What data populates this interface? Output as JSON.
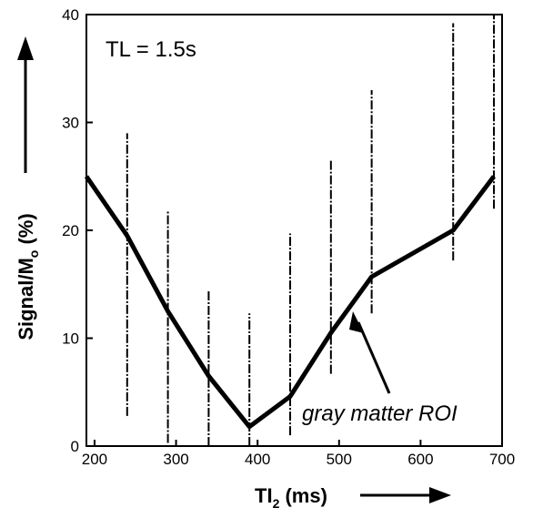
{
  "chart_data": {
    "type": "line",
    "inset_label": "TL = 1.5s",
    "xlabel_main": "TI",
    "xlabel_sub": "2",
    "xlabel_unit": " (ms)",
    "ylabel_main": "Signal/M",
    "ylabel_sub": "o",
    "ylabel_unit": " (%)",
    "annotation": "gray matter ROI",
    "xlim": [
      190,
      700
    ],
    "ylim": [
      0,
      40
    ],
    "xticks": [
      200,
      300,
      400,
      500,
      600,
      700
    ],
    "yticks": [
      0,
      10,
      20,
      30,
      40
    ],
    "series": [
      {
        "x": [
          190,
          240,
          290,
          340,
          390,
          440,
          490,
          540,
          640,
          690
        ],
        "y": [
          25,
          19.5,
          12.5,
          6.5,
          1.8,
          4.6,
          10.5,
          15.7,
          20,
          25
        ]
      }
    ],
    "error_bars": [
      {
        "x": 240,
        "low": 2.8,
        "high": 29
      },
      {
        "x": 290,
        "low": 0.3,
        "high": 21.8
      },
      {
        "x": 340,
        "low": 0,
        "high": 14.4
      },
      {
        "x": 390,
        "low": 0,
        "high": 12.3
      },
      {
        "x": 440,
        "low": 1,
        "high": 19.7
      },
      {
        "x": 490,
        "low": 6.7,
        "high": 26.5
      },
      {
        "x": 540,
        "low": 12.3,
        "high": 33
      },
      {
        "x": 640,
        "low": 17.2,
        "high": 39.2
      },
      {
        "x": 690,
        "low": 22,
        "high": 40
      }
    ]
  }
}
